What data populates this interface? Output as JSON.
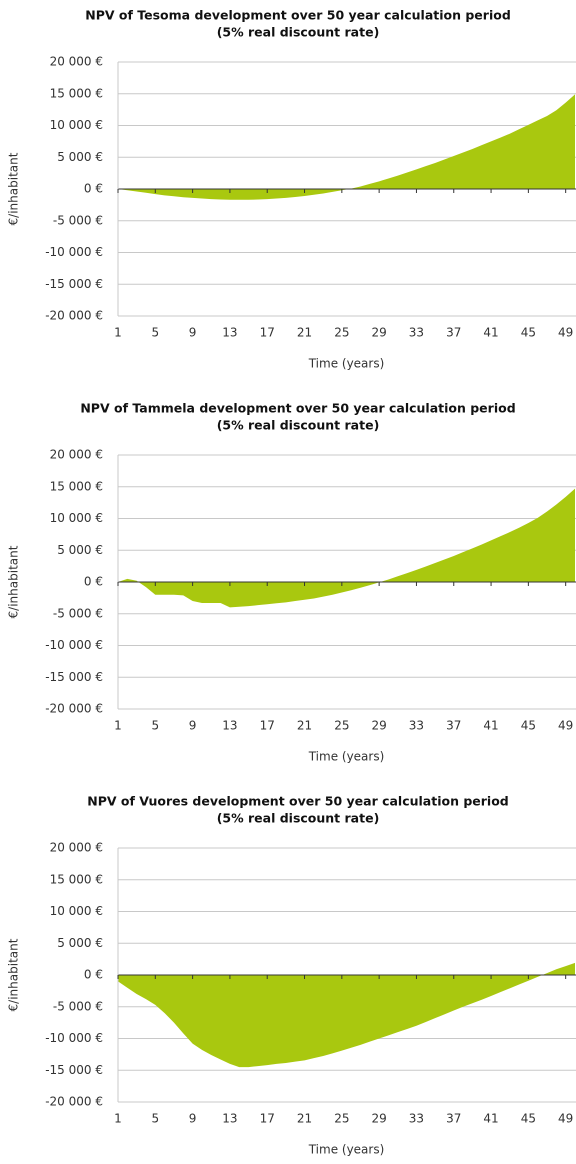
{
  "chart_data": [
    {
      "type": "area",
      "title": "NPV of Tesoma development over 50 year calculation period",
      "subtitle": "(5% real discount rate)",
      "ylabel": "€/inhabitant",
      "xlabel": "Time (years)",
      "color": "#a9c80f",
      "x": [
        1,
        2,
        3,
        4,
        5,
        6,
        7,
        8,
        9,
        10,
        11,
        12,
        13,
        14,
        15,
        16,
        17,
        18,
        19,
        20,
        21,
        22,
        23,
        24,
        25,
        26,
        27,
        28,
        29,
        30,
        31,
        32,
        33,
        34,
        35,
        36,
        37,
        38,
        39,
        40,
        41,
        42,
        43,
        44,
        45,
        46,
        47,
        48,
        49,
        50
      ],
      "values": [
        0,
        -200,
        -400,
        -600,
        -800,
        -1000,
        -1150,
        -1300,
        -1400,
        -1500,
        -1600,
        -1650,
        -1700,
        -1700,
        -1700,
        -1650,
        -1600,
        -1500,
        -1400,
        -1250,
        -1100,
        -900,
        -700,
        -450,
        -200,
        50,
        400,
        800,
        1200,
        1650,
        2100,
        2600,
        3100,
        3600,
        4100,
        4650,
        5200,
        5750,
        6300,
        6900,
        7500,
        8100,
        8700,
        9400,
        10100,
        10800,
        11500,
        12400,
        13600,
        14900
      ],
      "xlim": [
        1,
        50
      ],
      "xticks": [
        1,
        5,
        9,
        13,
        17,
        21,
        25,
        29,
        33,
        37,
        41,
        45,
        49
      ],
      "ylim": [
        -20000,
        20000
      ],
      "yticks": [
        {
          "value": -20000,
          "label": "-20 000 €"
        },
        {
          "value": -15000,
          "label": "-15 000 €"
        },
        {
          "value": -10000,
          "label": "-10 000 €"
        },
        {
          "value": -5000,
          "label": "-5 000 €"
        },
        {
          "value": 0,
          "label": "0 €"
        },
        {
          "value": 5000,
          "label": "5 000 €"
        },
        {
          "value": 10000,
          "label": "10 000 €"
        },
        {
          "value": 15000,
          "label": "15 000 €"
        },
        {
          "value": 20000,
          "label": "20 000 €"
        }
      ],
      "grid": true
    },
    {
      "type": "area",
      "title": "NPV of Tammela development over 50 year calculation period",
      "subtitle": "(5% real discount rate)",
      "ylabel": "€/inhabitant",
      "xlabel": "Time (years)",
      "color": "#a9c80f",
      "x": [
        1,
        2,
        3,
        4,
        5,
        6,
        7,
        8,
        9,
        10,
        11,
        12,
        13,
        14,
        15,
        16,
        17,
        18,
        19,
        20,
        21,
        22,
        23,
        24,
        25,
        26,
        27,
        28,
        29,
        30,
        31,
        32,
        33,
        34,
        35,
        36,
        37,
        38,
        39,
        40,
        41,
        42,
        43,
        44,
        45,
        46,
        47,
        48,
        49,
        50
      ],
      "values": [
        0,
        500,
        200,
        -800,
        -2000,
        -2000,
        -2000,
        -2100,
        -3000,
        -3300,
        -3300,
        -3300,
        -4000,
        -3900,
        -3800,
        -3650,
        -3500,
        -3350,
        -3200,
        -3000,
        -2800,
        -2600,
        -2300,
        -2000,
        -1650,
        -1300,
        -900,
        -500,
        -50,
        400,
        900,
        1400,
        1900,
        2450,
        3000,
        3550,
        4100,
        4700,
        5300,
        5900,
        6550,
        7200,
        7850,
        8550,
        9300,
        10100,
        11100,
        12200,
        13400,
        14700
      ],
      "xlim": [
        1,
        50
      ],
      "xticks": [
        1,
        5,
        9,
        13,
        17,
        21,
        25,
        29,
        33,
        37,
        41,
        45,
        49
      ],
      "ylim": [
        -20000,
        20000
      ],
      "yticks": [
        {
          "value": -20000,
          "label": "-20 000 €"
        },
        {
          "value": -15000,
          "label": "-15 000 €"
        },
        {
          "value": -10000,
          "label": "-10 000 €"
        },
        {
          "value": -5000,
          "label": "-5 000 €"
        },
        {
          "value": 0,
          "label": "0 €"
        },
        {
          "value": 5000,
          "label": "5 000 €"
        },
        {
          "value": 10000,
          "label": "10 000 €"
        },
        {
          "value": 15000,
          "label": "15 000 €"
        },
        {
          "value": 20000,
          "label": "20 000 €"
        }
      ],
      "grid": true
    },
    {
      "type": "area",
      "title": "NPV of Vuores development over 50 year calculation period",
      "subtitle": "(5% real discount rate)",
      "ylabel": "€/inhabitant",
      "xlabel": "Time (years)",
      "color": "#a9c80f",
      "x": [
        1,
        2,
        3,
        4,
        5,
        6,
        7,
        8,
        9,
        10,
        11,
        12,
        13,
        14,
        15,
        16,
        17,
        18,
        19,
        20,
        21,
        22,
        23,
        24,
        25,
        26,
        27,
        28,
        29,
        30,
        31,
        32,
        33,
        34,
        35,
        36,
        37,
        38,
        39,
        40,
        41,
        42,
        43,
        44,
        45,
        46,
        47,
        48,
        49,
        50
      ],
      "values": [
        -1000,
        -2000,
        -3000,
        -3800,
        -4700,
        -6000,
        -7500,
        -9200,
        -10800,
        -11800,
        -12600,
        -13300,
        -14000,
        -14500,
        -14500,
        -14350,
        -14200,
        -14000,
        -13850,
        -13650,
        -13450,
        -13100,
        -12750,
        -12350,
        -11900,
        -11450,
        -11000,
        -10500,
        -10000,
        -9500,
        -9000,
        -8500,
        -8000,
        -7400,
        -6800,
        -6200,
        -5600,
        -5000,
        -4450,
        -3900,
        -3300,
        -2700,
        -2100,
        -1500,
        -900,
        -300,
        300,
        900,
        1400,
        1900
      ],
      "xlim": [
        1,
        50
      ],
      "xticks": [
        1,
        5,
        9,
        13,
        17,
        21,
        25,
        29,
        33,
        37,
        41,
        45,
        49
      ],
      "ylim": [
        -20000,
        20000
      ],
      "yticks": [
        {
          "value": -20000,
          "label": "-20 000 €"
        },
        {
          "value": -15000,
          "label": "-15 000 €"
        },
        {
          "value": -10000,
          "label": "-10 000 €"
        },
        {
          "value": -5000,
          "label": "-5 000 €"
        },
        {
          "value": 0,
          "label": "0 €"
        },
        {
          "value": 5000,
          "label": "5 000 €"
        },
        {
          "value": 10000,
          "label": "10 000 €"
        },
        {
          "value": 15000,
          "label": "15 000 €"
        },
        {
          "value": 20000,
          "label": "20 000 €"
        }
      ],
      "grid": true
    }
  ]
}
